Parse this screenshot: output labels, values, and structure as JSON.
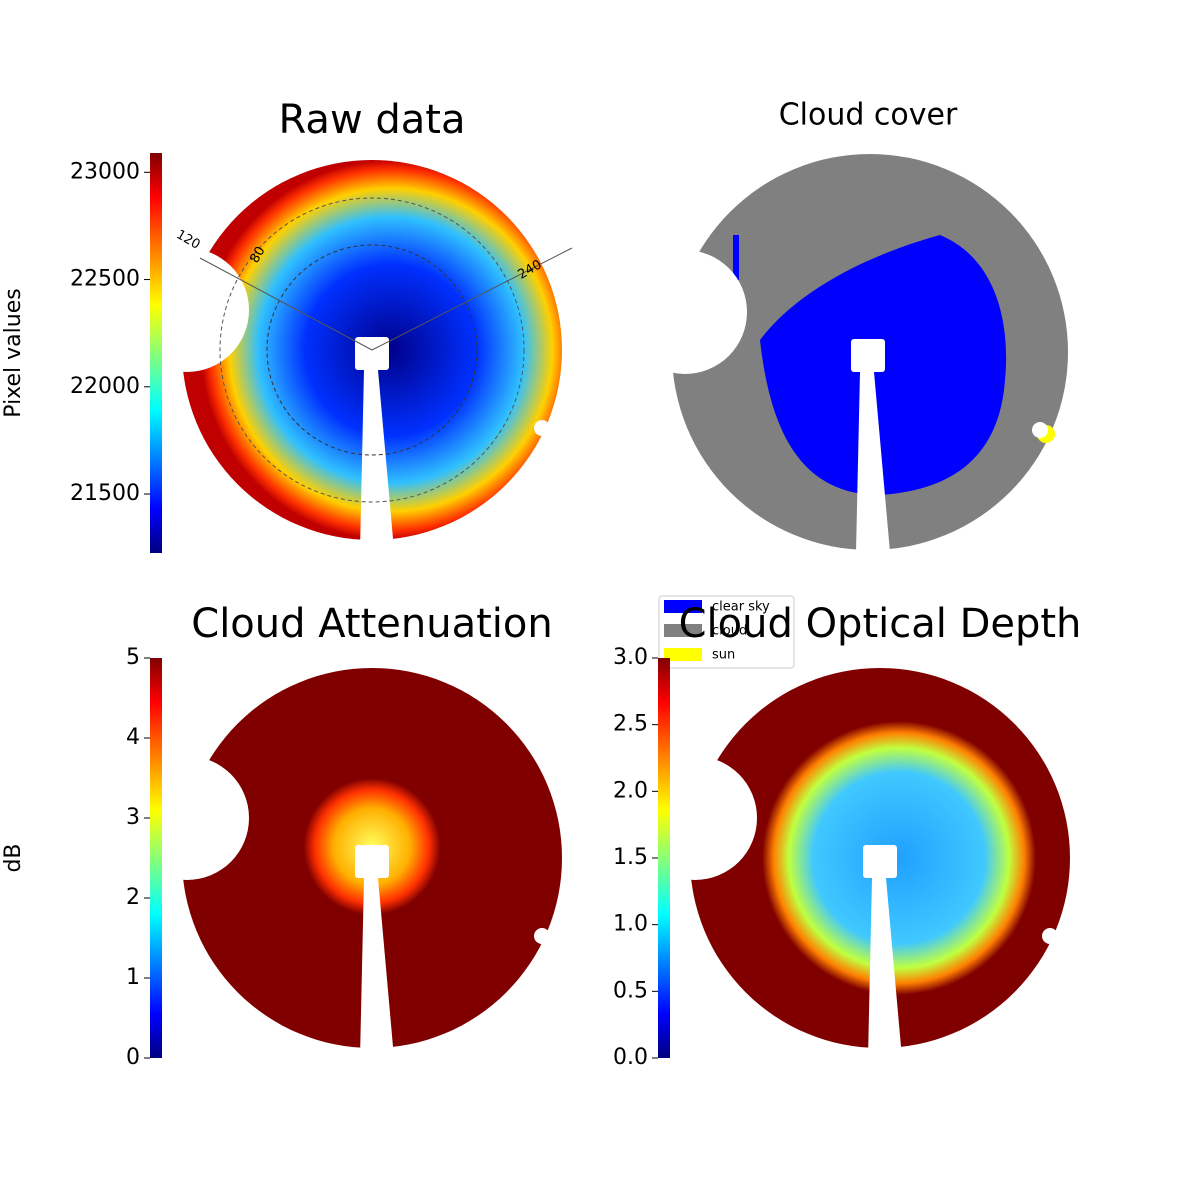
{
  "chart_data": [
    {
      "type": "heatmap",
      "title": "Raw data",
      "colorbar_label": "Pixel values",
      "colormap": "jet",
      "ylim": [
        21225,
        23090
      ],
      "yticks": [
        21500,
        22000,
        22500,
        23000
      ],
      "annotations": [
        "120",
        "80",
        "240"
      ]
    },
    {
      "type": "classification",
      "title": "Cloud cover",
      "series": [
        {
          "name": "clear sky",
          "color": "#0000ff"
        },
        {
          "name": "cloud",
          "color": "#808080"
        },
        {
          "name": "sun",
          "color": "#ffff00"
        }
      ]
    },
    {
      "type": "heatmap",
      "title": "Cloud Attenuation",
      "colorbar_label": "dB",
      "colormap": "jet",
      "ylim": [
        0,
        5
      ],
      "yticks": [
        0,
        1,
        2,
        3,
        4,
        5
      ]
    },
    {
      "type": "heatmap",
      "title": "Cloud Optical Depth",
      "colormap": "jet",
      "ylim": [
        0,
        3
      ],
      "yticks": [
        {
          "value": 0,
          "label": "0.0"
        },
        {
          "value": 0.5,
          "label": "0.5"
        },
        {
          "value": 1,
          "label": "1.0"
        },
        {
          "value": 1.5,
          "label": "1.5"
        },
        {
          "value": 2,
          "label": "2.0"
        },
        {
          "value": 2.5,
          "label": "2.5"
        },
        {
          "value": 3,
          "label": "3.0"
        }
      ]
    }
  ]
}
